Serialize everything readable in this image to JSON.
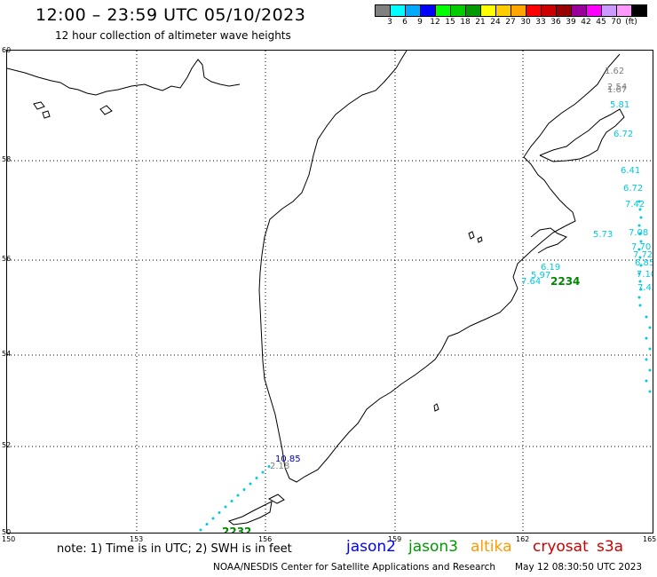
{
  "header": {
    "title": "12:00 – 23:59 UTC 05/10/2023",
    "subtitle": "12 hour collection of altimeter wave heights"
  },
  "color_scale": {
    "unit": "(ft)",
    "colors": [
      "#808080",
      "#00ffff",
      "#00aaff",
      "#0000ff",
      "#00ff00",
      "#00cc00",
      "#009900",
      "#ffff00",
      "#ffcc00",
      "#ffa500",
      "#ff0000",
      "#cc0000",
      "#990000",
      "#990099",
      "#ff00ff",
      "#cc99ff",
      "#ff99ff",
      "#000000"
    ],
    "labels": [
      "3",
      "6",
      "9",
      "12",
      "15",
      "18",
      "21",
      "24",
      "27",
      "30",
      "33",
      "36",
      "39",
      "42",
      "45",
      "70"
    ]
  },
  "map": {
    "lon_ticks": [
      "150",
      "153",
      "156",
      "159",
      "162",
      "165"
    ],
    "lat_ticks": [
      "60",
      "58",
      "56",
      "54",
      "52",
      "50"
    ],
    "wave_labels": [
      {
        "text": "1.62",
        "color": "#808080"
      },
      {
        "text": "2.54",
        "color": "#808080"
      },
      {
        "text": "1.67",
        "color": "#808080"
      },
      {
        "text": "5.81",
        "color": "#00ccdd"
      },
      {
        "text": "6.72",
        "color": "#00ccdd"
      },
      {
        "text": "6.41",
        "color": "#00ccdd"
      },
      {
        "text": "6.72",
        "color": "#00ccdd"
      },
      {
        "text": "7.42",
        "color": "#00ccdd"
      },
      {
        "text": "7.08",
        "color": "#00ccdd"
      },
      {
        "text": "5.73",
        "color": "#00ccdd"
      },
      {
        "text": "7.70",
        "color": "#00ccdd"
      },
      {
        "text": "7.72",
        "color": "#00ccdd"
      },
      {
        "text": "6.85",
        "color": "#00ccdd"
      },
      {
        "text": "7.10",
        "color": "#00ccdd"
      },
      {
        "text": "7.42",
        "color": "#00ccdd"
      },
      {
        "text": "6.19",
        "color": "#00ccdd"
      },
      {
        "text": "5.97",
        "color": "#00ccdd"
      },
      {
        "text": "7.64",
        "color": "#00ccdd"
      },
      {
        "text": "10.85",
        "color": "#0000cc"
      },
      {
        "text": "2.18",
        "color": "#808080"
      },
      {
        "text": "2232",
        "color": "#008800"
      },
      {
        "text": "2234",
        "color": "#008800"
      }
    ]
  },
  "footer": {
    "note": "note: 1) Time is in UTC; 2) SWH is in feet",
    "legend": [
      {
        "name": "jason2",
        "color": "#0000ff"
      },
      {
        "name": "jason3",
        "color": "#009900"
      },
      {
        "name": "altika",
        "color": "#ff9900"
      },
      {
        "name": "cryosat",
        "color": "#cc0000"
      },
      {
        "name": "s3a",
        "color": "#cc0000"
      }
    ],
    "credit": "NOAA/NESDIS Center for Satellite Applications and Research",
    "timestamp": "May 12 08:30:50 UTC 2023"
  }
}
